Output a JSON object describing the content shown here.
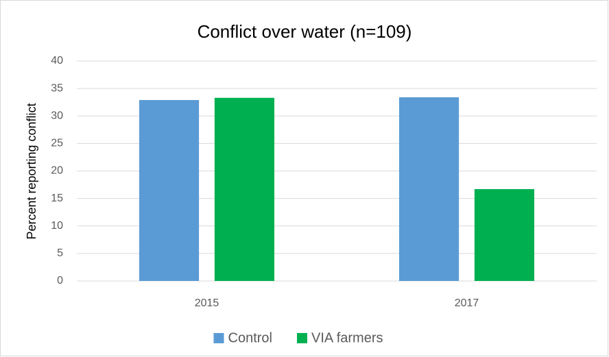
{
  "chart_data": {
    "type": "bar",
    "title": "Conflict over water (n=109)",
    "y_label": "Percent reporting conflict",
    "categories": [
      "2015",
      "2017"
    ],
    "series": [
      {
        "name": "Control",
        "color": "#5b9bd5",
        "values": [
          32.9,
          33.4
        ]
      },
      {
        "name": "VIA farmers",
        "color": "#00b050",
        "values": [
          33.3,
          16.7
        ]
      }
    ],
    "ylim": [
      0,
      40
    ],
    "yticks": [
      0,
      5,
      10,
      15,
      20,
      25,
      30,
      35,
      40
    ],
    "grid": true,
    "legend": "bottom"
  }
}
